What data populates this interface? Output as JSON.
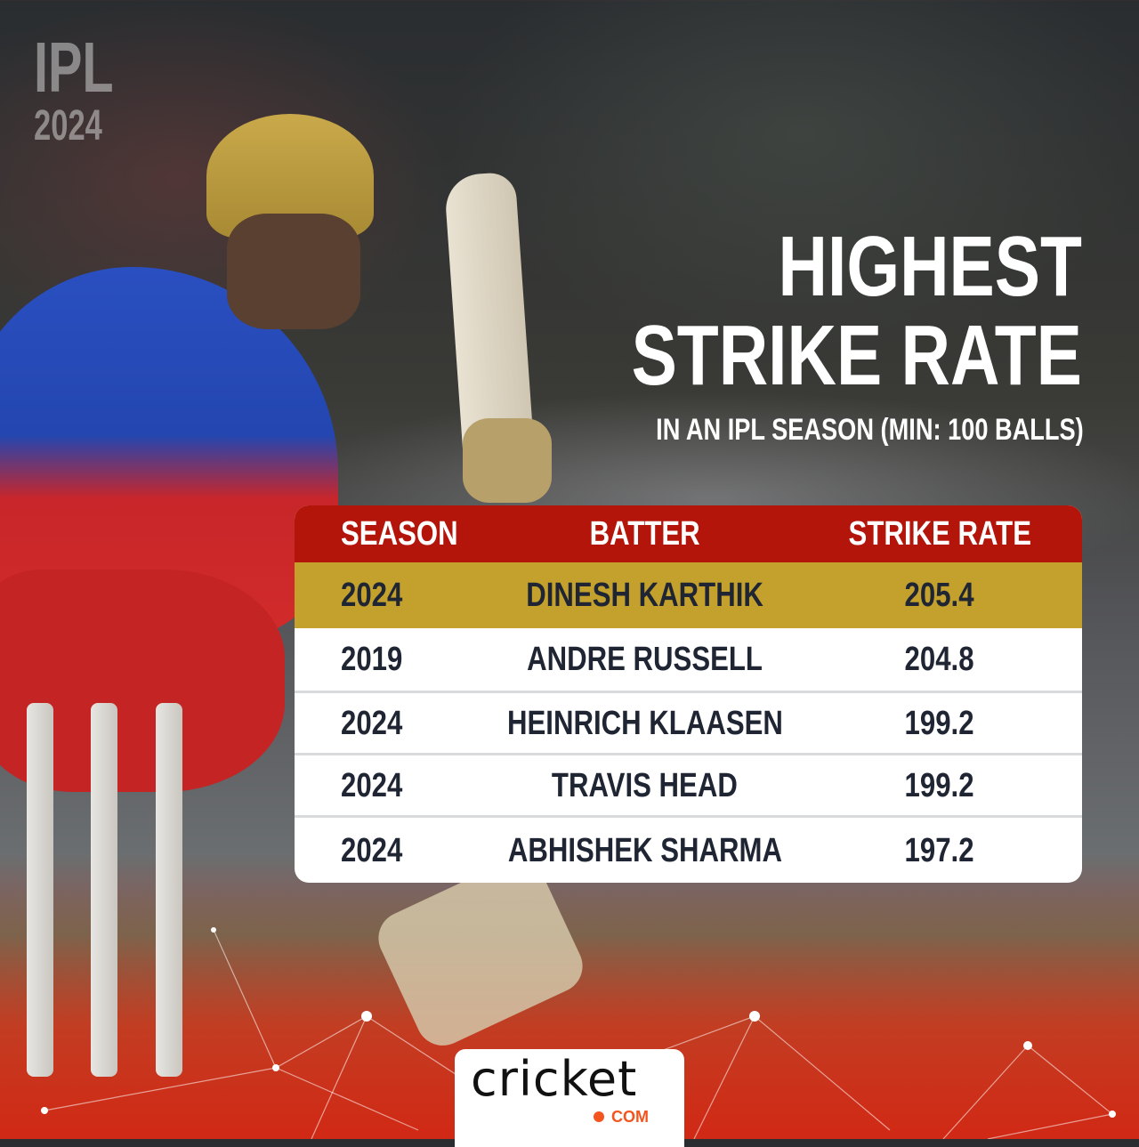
{
  "branding": {
    "event_line1": "IPL",
    "event_line2": "2024",
    "logo_text": "cricket",
    "logo_suffix": "COM"
  },
  "title": {
    "line1": "HIGHEST",
    "line2": "STRIKE RATE",
    "subtitle": "IN AN IPL SEASON (MIN: 100 BALLS)"
  },
  "table": {
    "headers": [
      "SEASON",
      "BATTER",
      "STRIKE RATE"
    ],
    "rows": [
      {
        "season": "2024",
        "batter": "DINESH KARTHIK",
        "strike_rate": "205.4",
        "highlighted": true
      },
      {
        "season": "2019",
        "batter": "ANDRE RUSSELL",
        "strike_rate": "204.8"
      },
      {
        "season": "2024",
        "batter": "HEINRICH KLAASEN",
        "strike_rate": "199.2"
      },
      {
        "season": "2024",
        "batter": "TRAVIS HEAD",
        "strike_rate": "199.2"
      },
      {
        "season": "2024",
        "batter": "ABHISHEK SHARMA",
        "strike_rate": "197.2"
      }
    ]
  },
  "colors": {
    "header_red": "#b3150b",
    "highlight_gold": "#c3a12c",
    "text_dark": "#1f2533",
    "logo_orange": "#f4551e"
  }
}
